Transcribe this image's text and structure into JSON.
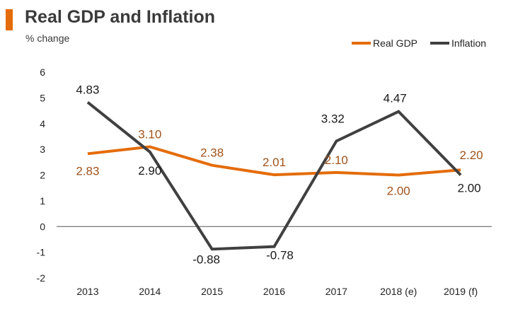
{
  "header": {
    "title": "Real GDP and Inflation",
    "subtitle": "% change"
  },
  "colors": {
    "accent": "#e46c0a",
    "real_gdp": "#e46c0a",
    "inflation": "#404040",
    "gdp_label": "#a0521a",
    "inflation_label": "#1a1a1a",
    "axis": "#555555",
    "title": "#3a3a3a"
  },
  "chart_data": {
    "type": "line",
    "title": "Real GDP and Inflation",
    "subtitle": "% change",
    "categories": [
      "2013",
      "2014",
      "2015",
      "2016",
      "2017",
      "2018 (e)",
      "2019 (f)"
    ],
    "ylim": [
      -2,
      6
    ],
    "yticks": [
      "6",
      "5",
      "4",
      "3",
      "2",
      "1",
      "0",
      "-1",
      "-2"
    ],
    "grid": false,
    "legend_position": "top-right",
    "series": [
      {
        "name": "Real GDP",
        "values": [
          2.83,
          3.1,
          2.38,
          2.01,
          2.1,
          2.0,
          2.2
        ],
        "labels": [
          "2.83",
          "3.10",
          "2.38",
          "2.01",
          "2.10",
          "2.00",
          "2.20"
        ]
      },
      {
        "name": "Inflation",
        "values": [
          4.83,
          2.9,
          -0.88,
          -0.78,
          3.32,
          4.47,
          2.0
        ],
        "labels": [
          "4.83",
          "2.90",
          "-0.88",
          "-0.78",
          "3.32",
          "4.47",
          "2.00"
        ]
      }
    ]
  }
}
